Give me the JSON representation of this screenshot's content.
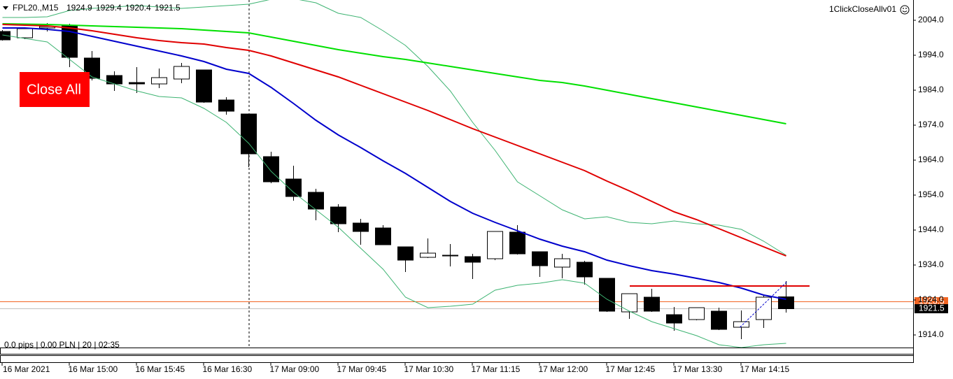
{
  "chart_data": {
    "type": "candlestick",
    "symbol": "FPL20.,M15",
    "expert": "1ClickCloseAllv01",
    "button": "Close All",
    "status": "0.0 pips | 0.00 PLN | 20 | 02:35",
    "categories": [
      "16 Mar 2021",
      null,
      null,
      "16 Mar 15:00",
      null,
      null,
      "16 Mar 15:45",
      null,
      null,
      "16 Mar 16:30",
      null,
      null,
      "17 Mar 09:00",
      null,
      null,
      "17 Mar 09:45",
      null,
      null,
      "17 Mar 10:30",
      null,
      null,
      "17 Mar 11:15",
      null,
      null,
      "17 Mar 12:00",
      null,
      null,
      "17 Mar 12:45",
      null,
      null,
      "17 Mar 13:30",
      null,
      null,
      "17 Mar 14:15",
      null,
      null
    ],
    "open": [
      2000.8,
      1999.0,
      2001.8,
      2002.4,
      1993.2,
      1988.2,
      1986.2,
      1985.8,
      1987.2,
      1989.8,
      1981.2,
      1977.2,
      1965.0,
      1958.6,
      1954.8,
      1950.6,
      1946.0,
      1944.6,
      1939.2,
      1936.2,
      1936.8,
      1936.4,
      1935.8,
      1943.4,
      1937.8,
      1933.4,
      1934.8,
      1930.2,
      1920.6,
      1924.8,
      1919.8,
      1918.4,
      1920.8,
      1916.2,
      1918.4,
      1924.9
    ],
    "high": [
      2001.2,
      2002.0,
      2003.2,
      2003.0,
      1995.2,
      1989.4,
      1990.6,
      1990.2,
      1991.8,
      1989.8,
      1982.0,
      1977.2,
      1966.4,
      1962.4,
      1955.8,
      1951.4,
      1947.2,
      1945.4,
      1939.2,
      1941.6,
      1940.0,
      1937.2,
      1943.6,
      1945.4,
      1937.8,
      1937.2,
      1935.2,
      1930.2,
      1925.8,
      1927.2,
      1922.0,
      1921.8,
      1921.8,
      1921.0,
      1925.6,
      1929.4
    ],
    "low": [
      1998.2,
      1998.6,
      2000.8,
      1990.6,
      1986.8,
      1983.8,
      1983.2,
      1984.6,
      1986.0,
      1980.4,
      1977.0,
      1962.0,
      1957.4,
      1952.4,
      1946.8,
      1943.4,
      1939.8,
      1939.8,
      1932.0,
      1936.0,
      1933.6,
      1930.0,
      1935.4,
      1937.0,
      1930.6,
      1930.2,
      1928.4,
      1920.6,
      1918.6,
      1920.6,
      1915.2,
      1918.2,
      1915.4,
      1912.8,
      1916.0,
      1920.4
    ],
    "close": [
      1998.4,
      2001.6,
      2002.2,
      1993.4,
      1987.4,
      1985.8,
      1985.8,
      1987.6,
      1990.8,
      1980.6,
      1978.0,
      1965.8,
      1957.8,
      1953.6,
      1950.0,
      1945.8,
      1943.6,
      1939.8,
      1935.4,
      1937.4,
      1936.6,
      1934.8,
      1943.6,
      1937.2,
      1933.8,
      1935.8,
      1930.6,
      1920.8,
      1925.8,
      1920.8,
      1917.4,
      1921.8,
      1915.6,
      1917.8,
      1924.8,
      1921.5
    ],
    "up_color": "#ffffff",
    "down_color": "#000000",
    "lines": [
      {
        "color": "#3cb371",
        "width": 1,
        "values": [
          2004.8,
          2004.8,
          2005.0,
          2006.8,
          2007.4,
          2007.8,
          2008.2,
          2007.8,
          2007.4,
          2007.8,
          2008.2,
          2008.6,
          2010.0,
          2010.2,
          2009.0,
          2006.0,
          2004.8,
          2001.0,
          1996.8,
          1990.8,
          1983.8,
          1974.8,
          1966.8,
          1957.8,
          1953.8,
          1949.8,
          1947.2,
          1947.8,
          1946.2,
          1945.8,
          1946.6,
          1945.8,
          1945.4,
          1944.2,
          1940.8,
          1936.8
        ]
      },
      {
        "color": "#3cb371",
        "width": 1,
        "values": [
          1999.8,
          1998.8,
          1997.8,
          1992.8,
          1987.8,
          1985.8,
          1983.8,
          1982.2,
          1981.8,
          1978.8,
          1974.8,
          1968.8,
          1960.8,
          1954.8,
          1949.8,
          1944.8,
          1938.8,
          1932.8,
          1924.8,
          1921.8,
          1922.2,
          1922.8,
          1926.8,
          1928.2,
          1928.8,
          1929.8,
          1928.8,
          1924.2,
          1920.8,
          1917.8,
          1915.8,
          1913.8,
          1911.2,
          1910.4,
          1911.2,
          1911.6
        ]
      },
      {
        "color": "#00e000",
        "width": 2,
        "values": [
          2003.0,
          2002.9,
          2002.8,
          2002.6,
          2002.4,
          2002.2,
          2002.0,
          2001.8,
          2001.6,
          2001.2,
          2000.8,
          2000.4,
          1999.2,
          1998.0,
          1996.8,
          1995.6,
          1994.6,
          1993.6,
          1992.8,
          1991.8,
          1990.8,
          1989.8,
          1988.8,
          1987.8,
          1986.8,
          1986.2,
          1985.2,
          1984.0,
          1982.8,
          1981.6,
          1980.4,
          1979.2,
          1978.0,
          1976.8,
          1975.6,
          1974.4
        ]
      },
      {
        "color": "#e00000",
        "width": 2,
        "values": [
          2002.8,
          2002.6,
          2002.4,
          2001.8,
          2001.0,
          2000.0,
          1999.0,
          1998.2,
          1997.6,
          1997.2,
          1996.2,
          1995.4,
          1993.8,
          1991.8,
          1989.8,
          1987.8,
          1985.4,
          1983.0,
          1980.6,
          1978.2,
          1975.6,
          1973.0,
          1970.6,
          1968.2,
          1965.8,
          1963.4,
          1961.0,
          1958.0,
          1955.2,
          1952.2,
          1949.2,
          1947.0,
          1944.4,
          1941.8,
          1939.2,
          1936.6
        ]
      },
      {
        "color": "#0000cc",
        "width": 2,
        "values": [
          2001.8,
          2001.8,
          2001.4,
          2000.8,
          1999.4,
          1998.0,
          1996.6,
          1995.2,
          1993.8,
          1992.2,
          1990.0,
          1988.8,
          1984.8,
          1980.2,
          1975.4,
          1971.2,
          1967.6,
          1963.8,
          1960.2,
          1956.2,
          1952.2,
          1948.8,
          1946.2,
          1943.8,
          1941.4,
          1939.4,
          1937.8,
          1935.4,
          1933.8,
          1932.4,
          1931.4,
          1930.2,
          1929.0,
          1927.4,
          1925.4,
          1924.2
        ]
      }
    ],
    "ask": 1923.5,
    "ask_color": "#f26522",
    "order_level": 1928.0,
    "order_level_color": "#e00000",
    "ylim": [
      1910.4,
      2009.8
    ],
    "yticks": [
      {
        "value": 2004,
        "label": "2004.0"
      },
      {
        "value": 1994,
        "label": "1994.0"
      },
      {
        "value": 1984,
        "label": "1984.0"
      },
      {
        "value": 1974,
        "label": "1974.0"
      },
      {
        "value": 1964,
        "label": "1964.0"
      },
      {
        "value": 1954,
        "label": "1954.0"
      },
      {
        "value": 1944,
        "label": "1944.0"
      },
      {
        "value": 1934,
        "label": "1934.0"
      },
      {
        "value": 1924,
        "label": "1924.0"
      },
      {
        "value": 1914,
        "label": "1914.0"
      }
    ]
  }
}
